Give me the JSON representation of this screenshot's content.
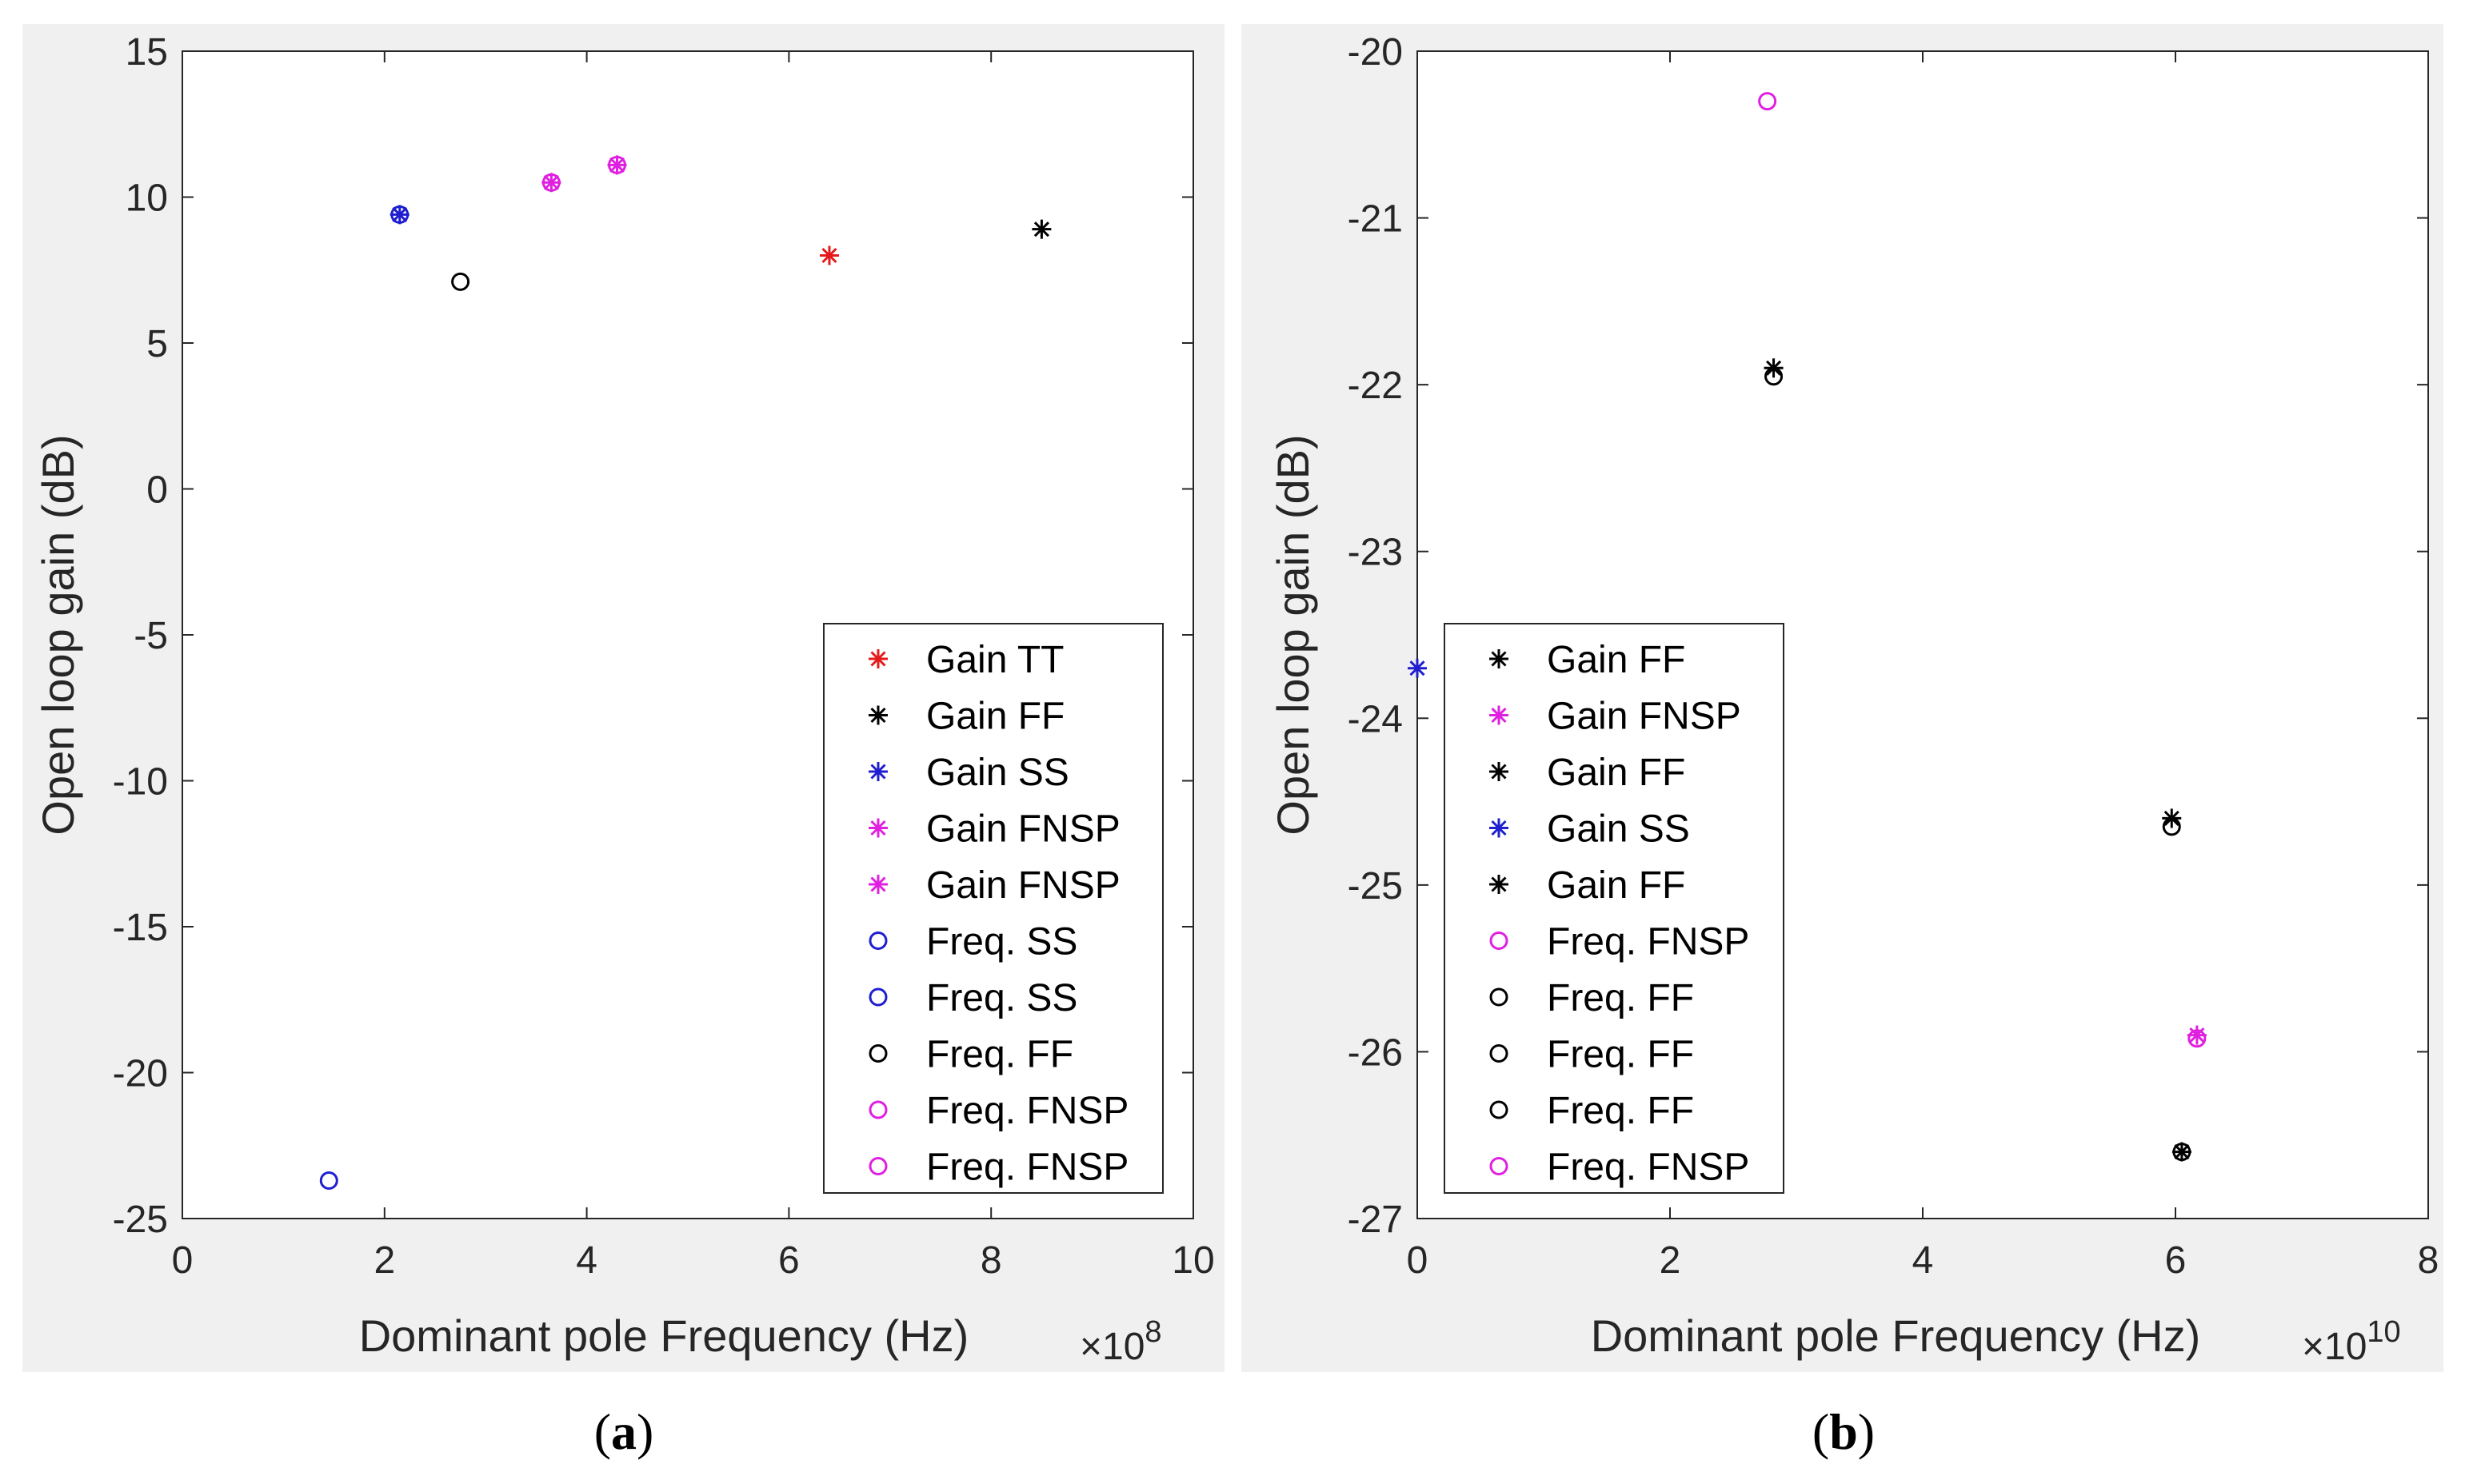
{
  "chart_data": [
    {
      "type": "scatter",
      "caption_open": "(",
      "caption_letter": "a",
      "caption_close": ")",
      "xlabel": "Dominant pole Frequency (Hz)",
      "ylabel": "Open loop gain (dB)",
      "x_exponent_prefix": "×10",
      "x_exponent_power": "8",
      "xlim": [
        0,
        10
      ],
      "ylim": [
        -25,
        15
      ],
      "xticks": [
        0,
        2,
        4,
        6,
        8,
        10
      ],
      "yticks": [
        15,
        10,
        5,
        0,
        -5,
        -10,
        -15,
        -20,
        -25
      ],
      "legend_location": "lower-right",
      "series": [
        {
          "name": "Gain TT",
          "marker": "star",
          "color": "#e41a1c",
          "points": [
            [
              6.4,
              8.0
            ]
          ]
        },
        {
          "name": "Gain FF",
          "marker": "star",
          "color": "#000000",
          "points": [
            [
              8.5,
              8.9
            ]
          ]
        },
        {
          "name": "Gain SS",
          "marker": "star",
          "color": "#1f1fd0",
          "points": [
            [
              2.15,
              9.4
            ]
          ]
        },
        {
          "name": "Gain FNSP",
          "marker": "star",
          "color": "#e020e0",
          "points": [
            [
              3.65,
              10.5
            ]
          ]
        },
        {
          "name": "Gain FNSP",
          "marker": "star",
          "color": "#e020e0",
          "points": [
            [
              4.3,
              11.1
            ]
          ]
        },
        {
          "name": "Freq. SS",
          "marker": "circle",
          "color": "#1f1fd0",
          "points": [
            [
              1.45,
              -23.7
            ]
          ]
        },
        {
          "name": "Freq. SS",
          "marker": "circle",
          "color": "#1f1fd0",
          "points": [
            [
              2.15,
              9.4
            ]
          ]
        },
        {
          "name": "Freq. FF",
          "marker": "circle",
          "color": "#000000",
          "points": [
            [
              2.75,
              7.1
            ]
          ]
        },
        {
          "name": "Freq. FNSP",
          "marker": "circle",
          "color": "#e020e0",
          "points": [
            [
              3.65,
              10.5
            ]
          ]
        },
        {
          "name": "Freq. FNSP",
          "marker": "circle",
          "color": "#e020e0",
          "points": [
            [
              4.3,
              11.1
            ]
          ]
        }
      ]
    },
    {
      "type": "scatter",
      "caption_open": "(",
      "caption_letter": "b",
      "caption_close": ")",
      "xlabel": "Dominant pole Frequency (Hz)",
      "ylabel": "Open loop gain (dB)",
      "x_exponent_prefix": "×10",
      "x_exponent_power": "10",
      "xlim": [
        0,
        8
      ],
      "ylim": [
        -27,
        -20
      ],
      "xticks": [
        0,
        2,
        4,
        6,
        8
      ],
      "yticks": [
        -20,
        -21,
        -22,
        -23,
        -24,
        -25,
        -26,
        -27
      ],
      "legend_location": "lower-left",
      "series": [
        {
          "name": "Gain FF",
          "marker": "star",
          "color": "#000000",
          "points": [
            [
              2.82,
              -21.9
            ]
          ]
        },
        {
          "name": "Gain FNSP",
          "marker": "star",
          "color": "#e020e0",
          "points": [
            [
              6.17,
              -25.9
            ]
          ]
        },
        {
          "name": "Gain FF",
          "marker": "star",
          "color": "#000000",
          "points": [
            [
              5.97,
              -24.6
            ]
          ]
        },
        {
          "name": "Gain SS",
          "marker": "star",
          "color": "#1f1fd0",
          "points": [
            [
              0.0,
              -23.7
            ]
          ]
        },
        {
          "name": "Gain FF",
          "marker": "star",
          "color": "#000000",
          "points": [
            [
              6.05,
              -26.6
            ]
          ]
        },
        {
          "name": "Freq. FNSP",
          "marker": "circle",
          "color": "#e020e0",
          "points": [
            [
              2.77,
              -20.3
            ]
          ]
        },
        {
          "name": "Freq. FF",
          "marker": "circle",
          "color": "#000000",
          "points": [
            [
              2.82,
              -21.95
            ]
          ]
        },
        {
          "name": "Freq. FF",
          "marker": "circle",
          "color": "#000000",
          "points": [
            [
              5.97,
              -24.65
            ]
          ]
        },
        {
          "name": "Freq. FF",
          "marker": "circle",
          "color": "#000000",
          "points": [
            [
              6.05,
              -26.6
            ]
          ]
        },
        {
          "name": "Freq. FNSP",
          "marker": "circle",
          "color": "#e020e0",
          "points": [
            [
              6.17,
              -25.92
            ]
          ]
        }
      ]
    }
  ]
}
